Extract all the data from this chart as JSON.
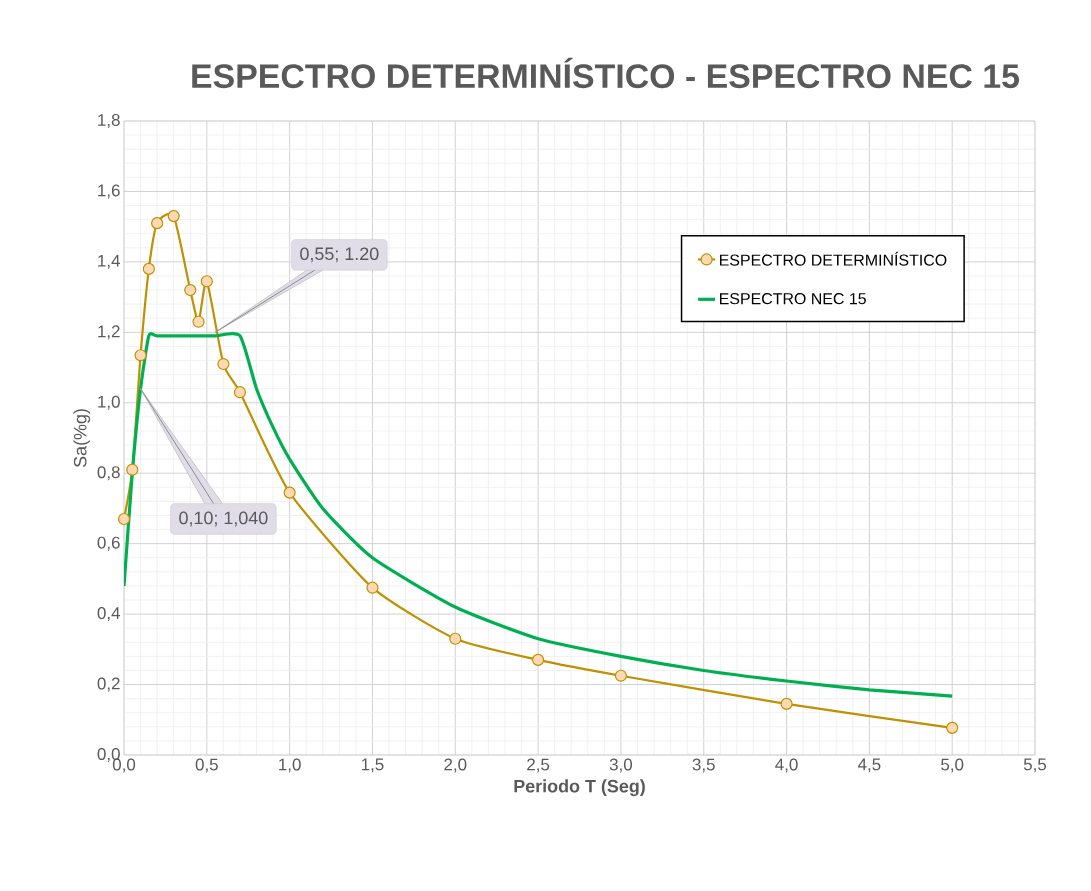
{
  "chart_data": {
    "type": "line",
    "title": "ESPECTRO DETERMINÍSTICO - ESPECTRO NEC 15",
    "xlabel": "Periodo T (Seg)",
    "ylabel": "Sa(%g)",
    "series": [
      {
        "name": "ESPECTRO DETERMINÍSTICO",
        "color": "#bf9000",
        "marker": "circle",
        "x": [
          0,
          0.05,
          0.1,
          0.15,
          0.2,
          0.3,
          0.4,
          0.45,
          0.5,
          0.6,
          0.7,
          1.0,
          1.5,
          2.0,
          2.5,
          3.0,
          4.0,
          5.0
        ],
        "values": [
          0.67,
          0.81,
          1.135,
          1.38,
          1.51,
          1.53,
          1.32,
          1.23,
          1.345,
          1.11,
          1.03,
          0.745,
          0.475,
          0.33,
          0.27,
          0.225,
          0.145,
          0.077
        ]
      },
      {
        "name": "ESPECTRO NEC 15",
        "color": "#00b050",
        "marker": "none",
        "x": [
          0,
          0.05,
          0.1,
          0.15,
          0.2,
          0.4,
          0.55,
          0.7,
          0.8,
          0.9,
          1.0,
          1.2,
          1.5,
          2.0,
          2.5,
          3.0,
          3.5,
          4.0,
          4.5,
          5.0
        ],
        "values": [
          0.48,
          0.8,
          1.04,
          1.19,
          1.19,
          1.19,
          1.19,
          1.19,
          1.04,
          0.93,
          0.84,
          0.7,
          0.56,
          0.42,
          0.33,
          0.28,
          0.24,
          0.21,
          0.185,
          0.167
        ]
      }
    ],
    "xlim": [
      0,
      5.5
    ],
    "ylim": [
      0,
      1.8
    ],
    "xticks": [
      {
        "value": 0,
        "label": "0,0"
      },
      {
        "value": 0.5,
        "label": "0,5"
      },
      {
        "value": 1,
        "label": "1,0"
      },
      {
        "value": 1.5,
        "label": "1,5"
      },
      {
        "value": 2,
        "label": "2,0"
      },
      {
        "value": 2.5,
        "label": "2,5"
      },
      {
        "value": 3,
        "label": "3,0"
      },
      {
        "value": 3.5,
        "label": "3,5"
      },
      {
        "value": 4,
        "label": "4,0"
      },
      {
        "value": 4.5,
        "label": "4,5"
      },
      {
        "value": 5,
        "label": "5,0"
      },
      {
        "value": 5.5,
        "label": "5,5"
      }
    ],
    "yticks": [
      {
        "value": 0,
        "label": "0,0"
      },
      {
        "value": 0.2,
        "label": "0,2"
      },
      {
        "value": 0.4,
        "label": "0,4"
      },
      {
        "value": 0.6,
        "label": "0,6"
      },
      {
        "value": 0.8,
        "label": "0,8"
      },
      {
        "value": 1.0,
        "label": "1,0"
      },
      {
        "value": 1.2,
        "label": "1,2"
      },
      {
        "value": 1.4,
        "label": "1,4"
      },
      {
        "value": 1.6,
        "label": "1,6"
      },
      {
        "value": 1.8,
        "label": "1,8"
      }
    ],
    "annotations": [
      {
        "text": "0,55; 1.20",
        "x": 0.55,
        "y": 1.2
      },
      {
        "text": "0,10; 1,040",
        "x": 0.1,
        "y": 1.04
      }
    ],
    "grid": true,
    "legend": "top right"
  }
}
